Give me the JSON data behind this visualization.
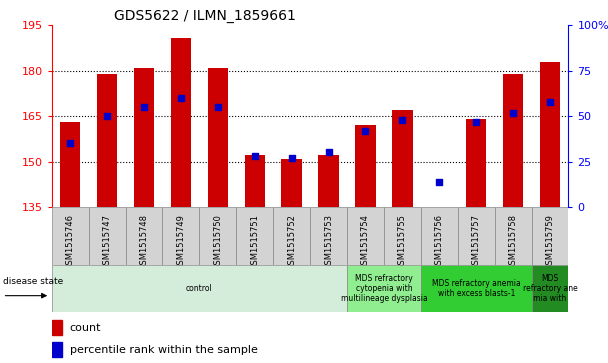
{
  "title": "GDS5622 / ILMN_1859661",
  "samples": [
    "GSM1515746",
    "GSM1515747",
    "GSM1515748",
    "GSM1515749",
    "GSM1515750",
    "GSM1515751",
    "GSM1515752",
    "GSM1515753",
    "GSM1515754",
    "GSM1515755",
    "GSM1515756",
    "GSM1515757",
    "GSM1515758",
    "GSM1515759"
  ],
  "counts": [
    163,
    179,
    181,
    191,
    181,
    152,
    151,
    152,
    162,
    167,
    135,
    164,
    179,
    183
  ],
  "percentile_ranks": [
    35,
    50,
    55,
    60,
    55,
    28,
    27,
    30,
    42,
    48,
    14,
    47,
    52,
    58
  ],
  "y_min": 135,
  "y_max": 195,
  "y_ticks": [
    135,
    150,
    165,
    180,
    195
  ],
  "right_y_ticks": [
    0,
    25,
    50,
    75,
    100
  ],
  "bar_color": "#cc0000",
  "dot_color": "#0000cc",
  "group_colors": [
    "#d4edda",
    "#90ee90",
    "#32cd32",
    "#228b22"
  ],
  "group_labels": [
    "control",
    "MDS refractory\ncytopenia with\nmultilineage dysplasia",
    "MDS refractory anemia\nwith excess blasts-1",
    "MDS\nrefractory ane\nmia with"
  ],
  "group_ranges": [
    [
      0,
      8
    ],
    [
      8,
      10
    ],
    [
      10,
      13
    ],
    [
      13,
      14
    ]
  ]
}
